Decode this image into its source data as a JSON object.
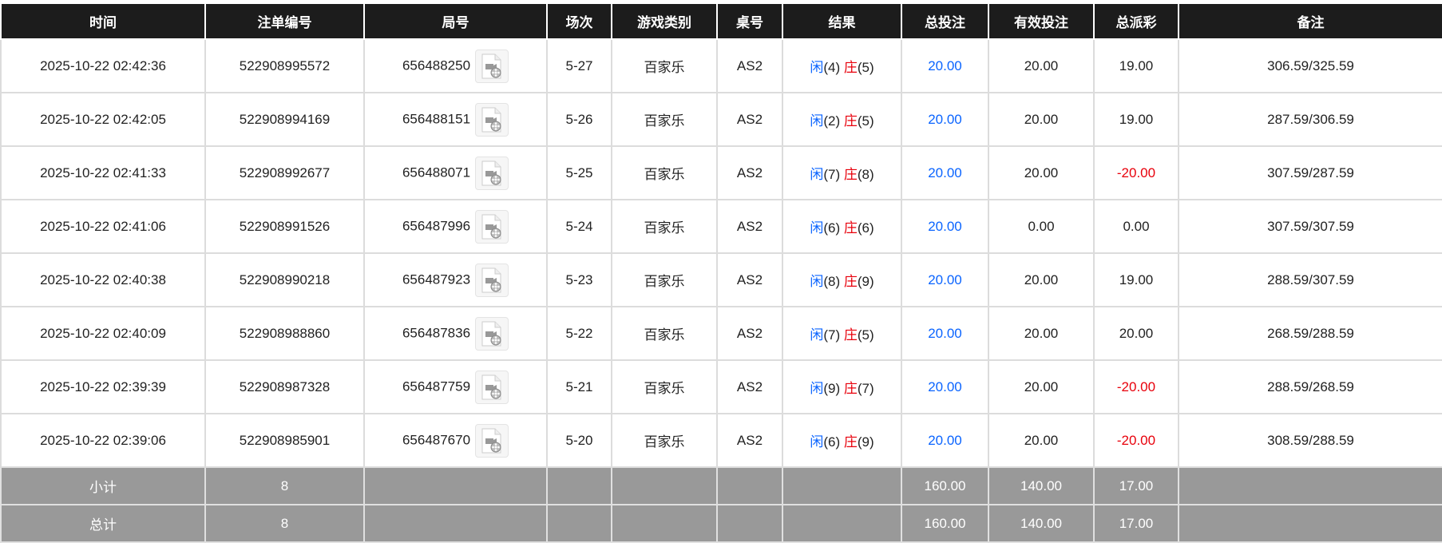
{
  "headers": [
    "时间",
    "注单编号",
    "局号",
    "场次",
    "游戏类别",
    "桌号",
    "结果",
    "总投注",
    "有效投注",
    "总派彩",
    "备注"
  ],
  "rows": [
    {
      "time": "2025-10-22 02:42:36",
      "bet_id": "522908995572",
      "round": "656488250",
      "shoe": "5-27",
      "game": "百家乐",
      "table": "AS2",
      "player_label": "闲",
      "player": "(4)",
      "banker_label": "庄",
      "banker": "(5)",
      "total_bet": "20.00",
      "valid_bet": "20.00",
      "payout": "19.00",
      "payout_negative": false,
      "note": "306.59/325.59"
    },
    {
      "time": "2025-10-22 02:42:05",
      "bet_id": "522908994169",
      "round": "656488151",
      "shoe": "5-26",
      "game": "百家乐",
      "table": "AS2",
      "player_label": "闲",
      "player": "(2)",
      "banker_label": "庄",
      "banker": "(5)",
      "total_bet": "20.00",
      "valid_bet": "20.00",
      "payout": "19.00",
      "payout_negative": false,
      "note": "287.59/306.59"
    },
    {
      "time": "2025-10-22 02:41:33",
      "bet_id": "522908992677",
      "round": "656488071",
      "shoe": "5-25",
      "game": "百家乐",
      "table": "AS2",
      "player_label": "闲",
      "player": "(7)",
      "banker_label": "庄",
      "banker": "(8)",
      "total_bet": "20.00",
      "valid_bet": "20.00",
      "payout": "-20.00",
      "payout_negative": true,
      "note": "307.59/287.59"
    },
    {
      "time": "2025-10-22 02:41:06",
      "bet_id": "522908991526",
      "round": "656487996",
      "shoe": "5-24",
      "game": "百家乐",
      "table": "AS2",
      "player_label": "闲",
      "player": "(6)",
      "banker_label": "庄",
      "banker": "(6)",
      "total_bet": "20.00",
      "valid_bet": "0.00",
      "payout": "0.00",
      "payout_negative": false,
      "note": "307.59/307.59"
    },
    {
      "time": "2025-10-22 02:40:38",
      "bet_id": "522908990218",
      "round": "656487923",
      "shoe": "5-23",
      "game": "百家乐",
      "table": "AS2",
      "player_label": "闲",
      "player": "(8)",
      "banker_label": "庄",
      "banker": "(9)",
      "total_bet": "20.00",
      "valid_bet": "20.00",
      "payout": "19.00",
      "payout_negative": false,
      "note": "288.59/307.59"
    },
    {
      "time": "2025-10-22 02:40:09",
      "bet_id": "522908988860",
      "round": "656487836",
      "shoe": "5-22",
      "game": "百家乐",
      "table": "AS2",
      "player_label": "闲",
      "player": "(7)",
      "banker_label": "庄",
      "banker": "(5)",
      "total_bet": "20.00",
      "valid_bet": "20.00",
      "payout": "20.00",
      "payout_negative": false,
      "note": "268.59/288.59"
    },
    {
      "time": "2025-10-22 02:39:39",
      "bet_id": "522908987328",
      "round": "656487759",
      "shoe": "5-21",
      "game": "百家乐",
      "table": "AS2",
      "player_label": "闲",
      "player": "(9)",
      "banker_label": "庄",
      "banker": "(7)",
      "total_bet": "20.00",
      "valid_bet": "20.00",
      "payout": "-20.00",
      "payout_negative": true,
      "note": "288.59/268.59"
    },
    {
      "time": "2025-10-22 02:39:06",
      "bet_id": "522908985901",
      "round": "656487670",
      "shoe": "5-20",
      "game": "百家乐",
      "table": "AS2",
      "player_label": "闲",
      "player": "(6)",
      "banker_label": "庄",
      "banker": "(9)",
      "total_bet": "20.00",
      "valid_bet": "20.00",
      "payout": "-20.00",
      "payout_negative": true,
      "note": "308.59/288.59"
    }
  ],
  "summary": [
    {
      "label": "小计",
      "count": "8",
      "total_bet": "160.00",
      "valid_bet": "140.00",
      "payout": "17.00"
    },
    {
      "label": "总计",
      "count": "8",
      "total_bet": "160.00",
      "valid_bet": "140.00",
      "payout": "17.00"
    }
  ],
  "colors": {
    "header_bg": "#1c1c1c",
    "player": "#0a64ff",
    "banker": "#e8000b",
    "negative": "#e8000b",
    "total_bet": "#0a64ff",
    "summary_bg": "#999999"
  },
  "icons": {
    "replay": "video-replay-icon"
  }
}
